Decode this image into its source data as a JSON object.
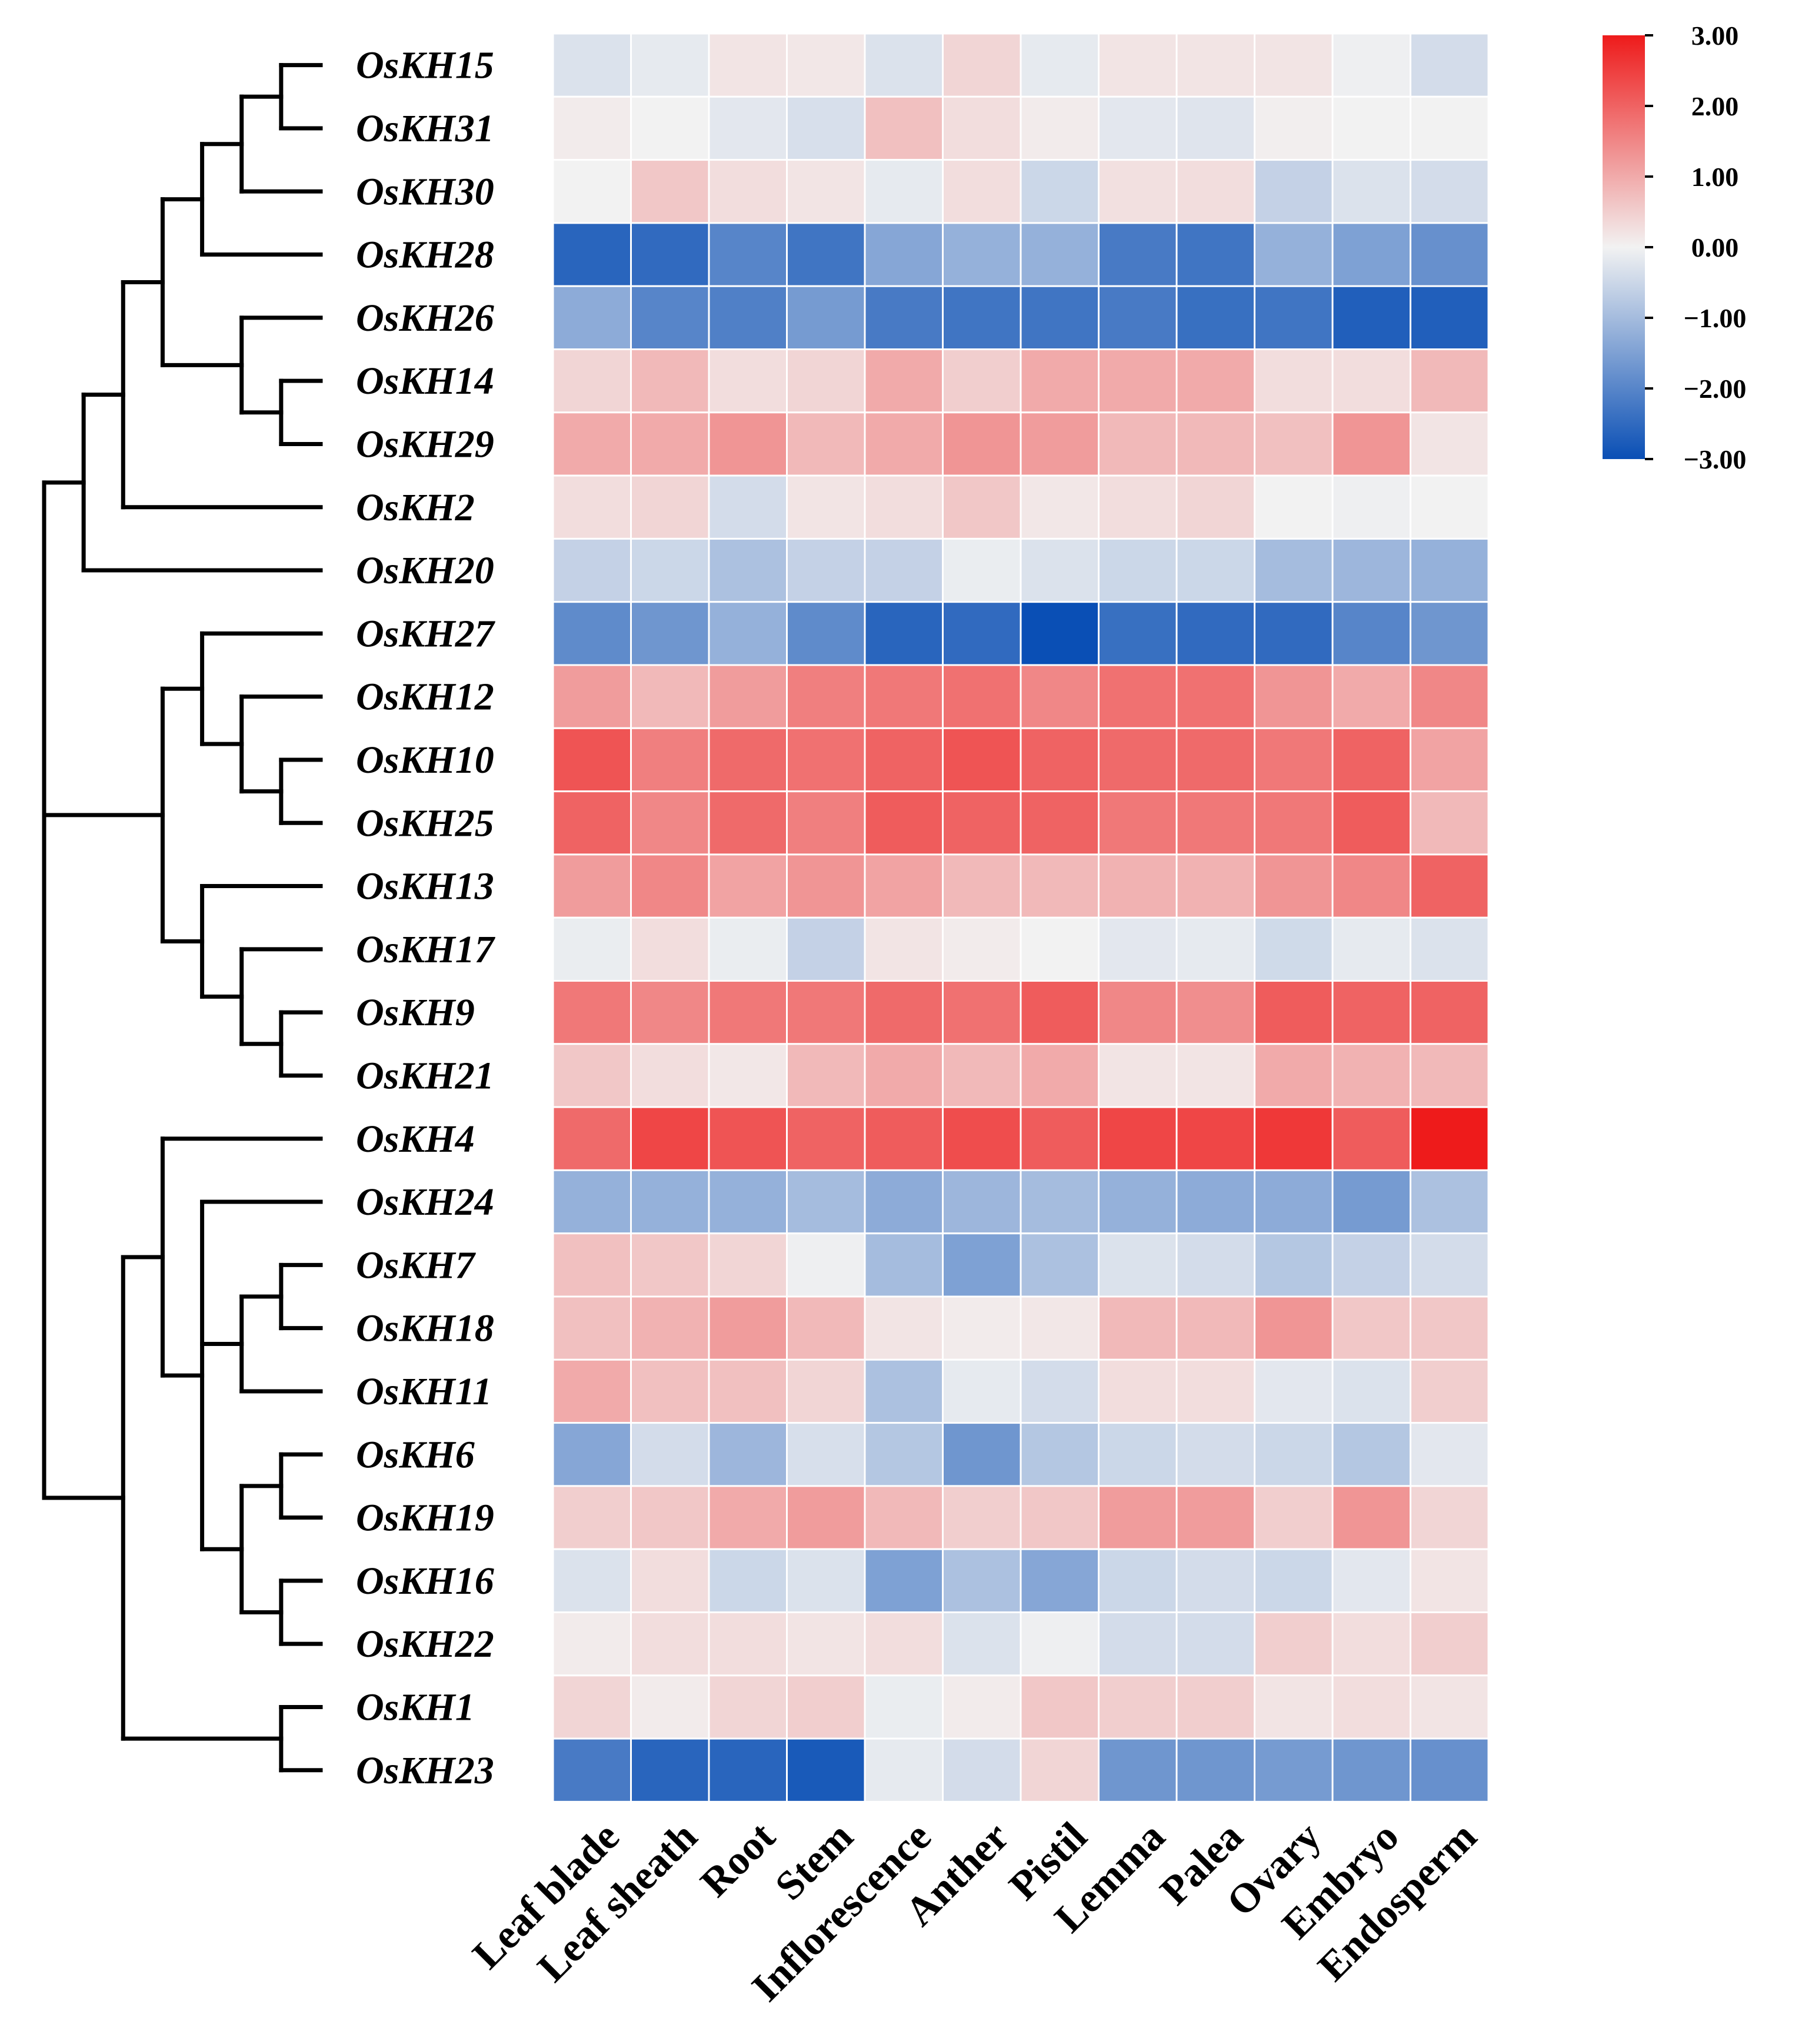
{
  "chart_data": {
    "type": "heatmap",
    "title": "",
    "rows": [
      "OsKH15",
      "OsKH31",
      "OsKH30",
      "OsKH28",
      "OsKH26",
      "OsKH14",
      "OsKH29",
      "OsKH2",
      "OsKH20",
      "OsKH27",
      "OsKH12",
      "OsKH10",
      "OsKH25",
      "OsKH13",
      "OsKH17",
      "OsKH9",
      "OsKH21",
      "OsKH4",
      "OsKH24",
      "OsKH7",
      "OsKH18",
      "OsKH11",
      "OsKH6",
      "OsKH19",
      "OsKH16",
      "OsKH22",
      "OsKH1",
      "OsKH23"
    ],
    "columns": [
      "Leaf blade",
      "Leaf sheath",
      "Root",
      "Stem",
      "Inflorescence",
      "Anther",
      "Pistil",
      "Lemma",
      "Palea",
      "Ovary",
      "Embryo",
      "Endosperm"
    ],
    "values": [
      [
        -0.3,
        -0.15,
        0.2,
        0.15,
        -0.3,
        0.4,
        -0.15,
        0.2,
        0.2,
        0.2,
        -0.05,
        -0.4
      ],
      [
        0.1,
        0.0,
        -0.2,
        -0.35,
        0.7,
        0.3,
        0.1,
        -0.2,
        -0.25,
        0.05,
        0.0,
        0.0
      ],
      [
        0.0,
        0.6,
        0.3,
        0.2,
        -0.15,
        0.3,
        -0.5,
        0.25,
        0.3,
        -0.6,
        -0.3,
        -0.4
      ],
      [
        -2.6,
        -2.5,
        -2.0,
        -2.3,
        -1.4,
        -1.2,
        -1.2,
        -2.2,
        -2.3,
        -1.2,
        -1.5,
        -1.8
      ],
      [
        -1.3,
        -2.0,
        -2.1,
        -1.6,
        -2.2,
        -2.3,
        -2.3,
        -2.2,
        -2.4,
        -2.3,
        -2.7,
        -2.7
      ],
      [
        0.4,
        0.8,
        0.3,
        0.4,
        1.0,
        0.5,
        1.0,
        1.0,
        1.0,
        0.3,
        0.3,
        0.8
      ],
      [
        1.0,
        1.0,
        1.3,
        0.8,
        1.0,
        1.3,
        1.2,
        0.8,
        0.8,
        0.7,
        1.3,
        0.2
      ],
      [
        0.3,
        0.4,
        -0.4,
        0.2,
        0.3,
        0.6,
        0.15,
        0.3,
        0.4,
        0.0,
        -0.05,
        0.0
      ],
      [
        -0.6,
        -0.5,
        -0.9,
        -0.6,
        -0.6,
        -0.1,
        -0.3,
        -0.5,
        -0.5,
        -1.0,
        -1.1,
        -1.2
      ],
      [
        -1.9,
        -1.7,
        -1.2,
        -1.9,
        -2.6,
        -2.5,
        -3.0,
        -2.4,
        -2.5,
        -2.5,
        -2.0,
        -1.7
      ],
      [
        1.2,
        0.8,
        1.2,
        1.6,
        1.7,
        1.8,
        1.5,
        1.8,
        1.8,
        1.3,
        1.0,
        1.5
      ],
      [
        2.2,
        1.6,
        1.9,
        1.8,
        2.0,
        2.2,
        2.0,
        1.9,
        1.9,
        1.7,
        2.0,
        1.1
      ],
      [
        2.0,
        1.5,
        1.9,
        1.6,
        2.1,
        2.0,
        2.0,
        1.7,
        1.7,
        1.7,
        2.1,
        0.8
      ],
      [
        1.2,
        1.5,
        1.1,
        1.3,
        1.1,
        0.8,
        0.8,
        0.9,
        0.9,
        1.3,
        1.5,
        2.0
      ],
      [
        -0.1,
        0.3,
        -0.1,
        -0.6,
        0.2,
        0.1,
        0.0,
        -0.2,
        -0.15,
        -0.45,
        -0.15,
        -0.3
      ],
      [
        1.7,
        1.5,
        1.7,
        1.7,
        1.9,
        1.8,
        2.1,
        1.5,
        1.4,
        2.1,
        2.0,
        2.0
      ],
      [
        0.6,
        0.3,
        0.15,
        0.8,
        1.0,
        0.8,
        1.0,
        0.2,
        0.2,
        1.0,
        0.9,
        0.8
      ],
      [
        1.9,
        2.4,
        2.2,
        2.0,
        2.1,
        2.3,
        2.1,
        2.4,
        2.4,
        2.6,
        2.1,
        3.0
      ],
      [
        -1.2,
        -1.2,
        -1.2,
        -1.0,
        -1.3,
        -1.1,
        -1.0,
        -1.2,
        -1.3,
        -1.3,
        -1.6,
        -0.9
      ],
      [
        0.7,
        0.6,
        0.4,
        -0.05,
        -1.0,
        -1.5,
        -0.9,
        -0.3,
        -0.4,
        -0.8,
        -0.6,
        -0.4
      ],
      [
        0.7,
        0.9,
        1.2,
        0.8,
        0.2,
        0.1,
        0.15,
        0.8,
        0.8,
        1.3,
        0.6,
        0.6
      ],
      [
        1.0,
        0.7,
        0.7,
        0.4,
        -0.9,
        -0.15,
        -0.4,
        0.3,
        0.3,
        -0.2,
        -0.3,
        0.5
      ],
      [
        -1.4,
        -0.4,
        -1.1,
        -0.35,
        -0.8,
        -1.7,
        -0.8,
        -0.5,
        -0.4,
        -0.5,
        -0.8,
        -0.2
      ],
      [
        0.5,
        0.6,
        1.0,
        1.2,
        0.8,
        0.5,
        0.6,
        1.2,
        1.2,
        0.5,
        1.3,
        0.4
      ],
      [
        -0.3,
        0.3,
        -0.5,
        -0.3,
        -1.5,
        -0.9,
        -1.4,
        -0.5,
        -0.4,
        -0.5,
        -0.2,
        0.2
      ],
      [
        0.1,
        0.3,
        0.3,
        0.2,
        0.3,
        -0.3,
        -0.05,
        -0.4,
        -0.4,
        0.5,
        0.3,
        0.5
      ],
      [
        0.4,
        0.1,
        0.4,
        0.5,
        -0.1,
        0.1,
        0.6,
        0.5,
        0.5,
        0.2,
        0.3,
        0.2
      ],
      [
        -2.2,
        -2.6,
        -2.6,
        -2.8,
        -0.15,
        -0.4,
        0.4,
        -1.7,
        -1.7,
        -1.6,
        -1.7,
        -1.8
      ]
    ],
    "color_scale": {
      "min": -3.0,
      "max": 3.0,
      "low_color": "#0a4fb5",
      "mid_color": "#f2f2f2",
      "high_color": "#ee1b1b",
      "ticks": [
        "3.00",
        "2.00",
        "1.00",
        "0.00",
        "−1.00",
        "−2.00",
        "−3.00"
      ]
    },
    "dendrogram": {
      "tree": [
        [
          [
            [
              [
                [
                  [
                    0,
                    1
                  ],
                  2
                ],
                3
              ],
              [
                4,
                [
                  5,
                  6
                ]
              ]
            ],
            7
          ],
          8
        ],
        [
          [
            9,
            [
              10,
              [
                11,
                12
              ]
            ]
          ],
          [
            13,
            [
              14,
              [
                15,
                16
              ]
            ]
          ]
        ],
        [
          [
            17,
            [
              18,
              [
                [
                  19,
                  20
                ],
                21
              ],
              [
                [
                  22,
                  23
                ],
                [
                  24,
                  25
                ]
              ]
            ]
          ],
          [
            26,
            27
          ]
        ]
      ],
      "tree_note": "leaf indices refer to rows; nested arrays are clades"
    },
    "legend_placement": "top-right",
    "xlabel": "",
    "ylabel": ""
  }
}
